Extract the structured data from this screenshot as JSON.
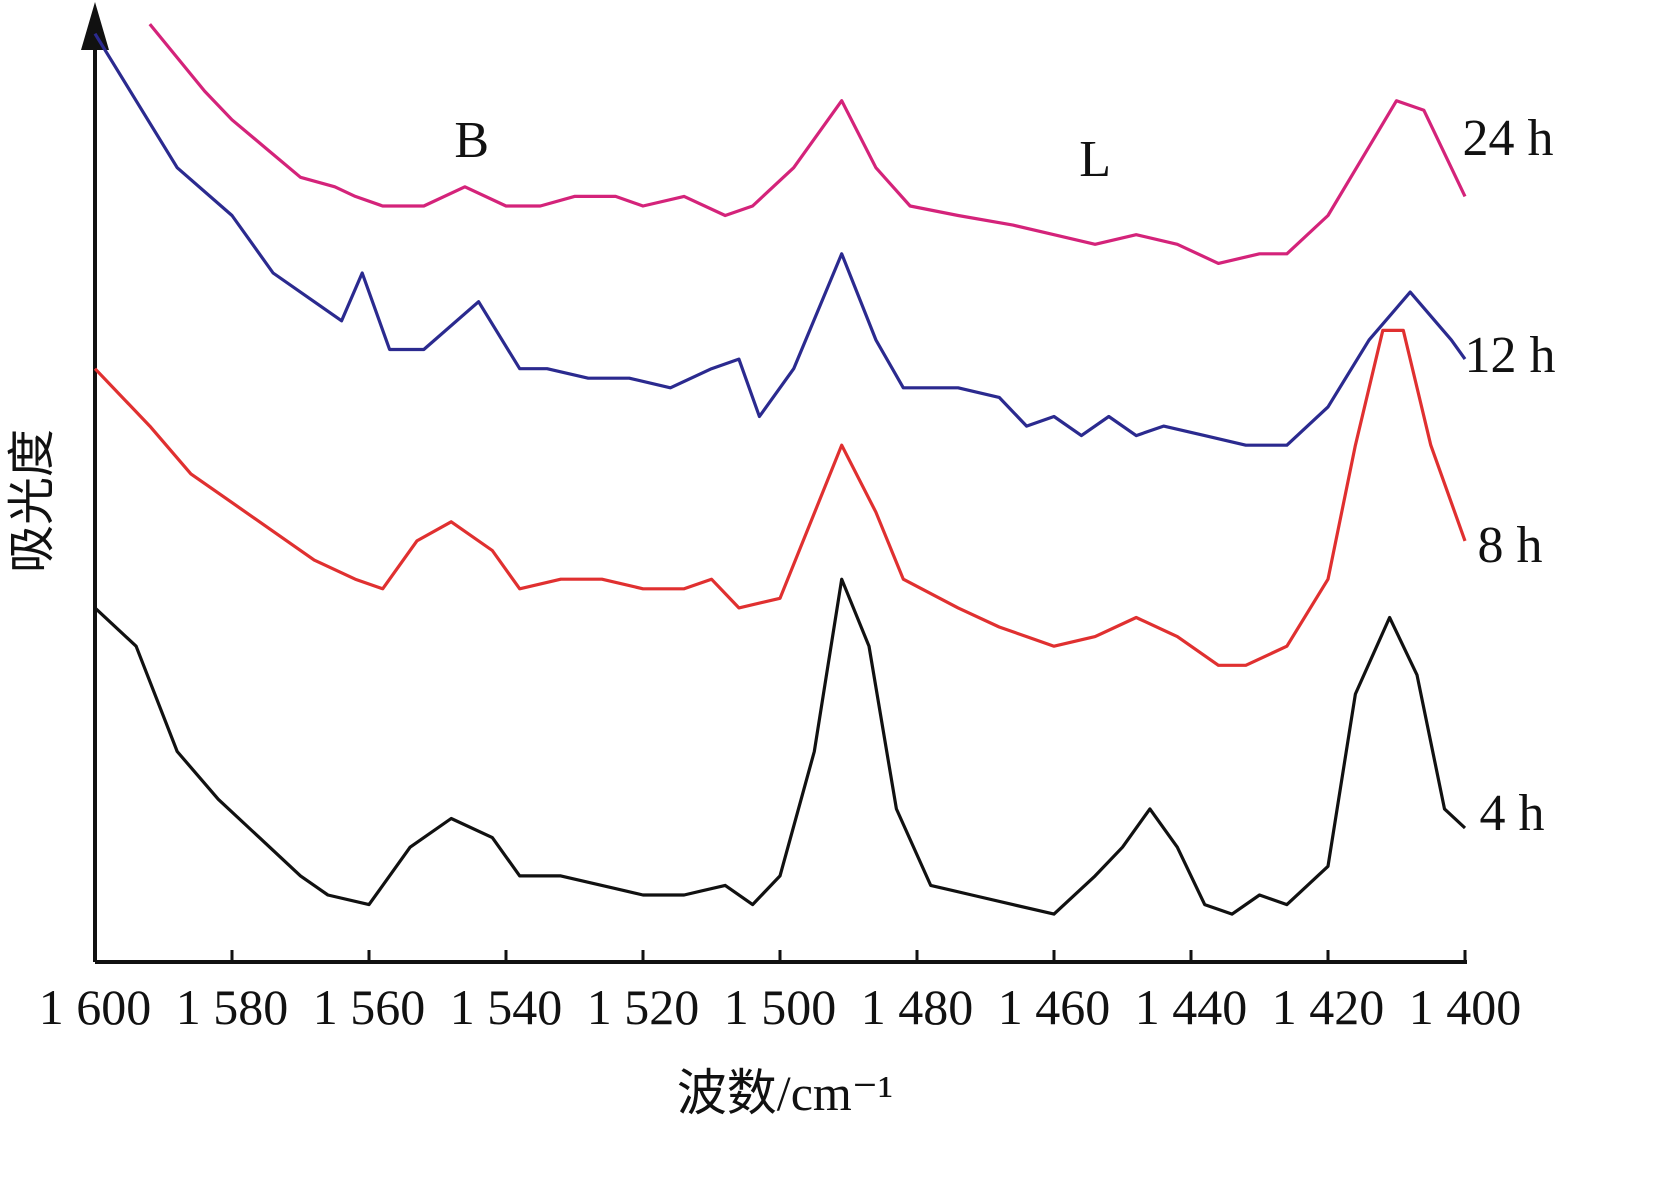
{
  "chart_data": {
    "type": "line",
    "xlabel": "波数/cm⁻¹",
    "ylabel": "吸光度",
    "xlim": [
      1600,
      1400
    ],
    "x_reversed": true,
    "y_ticks_shown": false,
    "grid": false,
    "legend": "labels at right end of each series",
    "x_ticks": [
      {
        "value": 1600,
        "label": "1 600"
      },
      {
        "value": 1580,
        "label": "1 580"
      },
      {
        "value": 1560,
        "label": "1 560"
      },
      {
        "value": 1540,
        "label": "1 540"
      },
      {
        "value": 1520,
        "label": "1 520"
      },
      {
        "value": 1500,
        "label": "1 500"
      },
      {
        "value": 1480,
        "label": "1 480"
      },
      {
        "value": 1460,
        "label": "1 460"
      },
      {
        "value": 1440,
        "label": "1 440"
      },
      {
        "value": 1420,
        "label": "1 420"
      },
      {
        "value": 1400,
        "label": "1 400"
      }
    ],
    "annotations": [
      {
        "text": "B",
        "x": 1545,
        "y": 0.86
      },
      {
        "text": "L",
        "x": 1454,
        "y": 0.84
      }
    ],
    "series": [
      {
        "name": "24 h",
        "color": "#d4237a",
        "points": [
          [
            1592,
            0.98
          ],
          [
            1584,
            0.91
          ],
          [
            1580,
            0.88
          ],
          [
            1575,
            0.85
          ],
          [
            1570,
            0.82
          ],
          [
            1565,
            0.81
          ],
          [
            1562,
            0.8
          ],
          [
            1558,
            0.79
          ],
          [
            1552,
            0.79
          ],
          [
            1546,
            0.81
          ],
          [
            1540,
            0.79
          ],
          [
            1535,
            0.79
          ],
          [
            1530,
            0.8
          ],
          [
            1524,
            0.8
          ],
          [
            1520,
            0.79
          ],
          [
            1514,
            0.8
          ],
          [
            1508,
            0.78
          ],
          [
            1504,
            0.79
          ],
          [
            1498,
            0.83
          ],
          [
            1491,
            0.9
          ],
          [
            1486,
            0.83
          ],
          [
            1481,
            0.79
          ],
          [
            1474,
            0.78
          ],
          [
            1466,
            0.77
          ],
          [
            1460,
            0.76
          ],
          [
            1454,
            0.75
          ],
          [
            1448,
            0.76
          ],
          [
            1442,
            0.75
          ],
          [
            1436,
            0.73
          ],
          [
            1430,
            0.74
          ],
          [
            1426,
            0.74
          ],
          [
            1420,
            0.78
          ],
          [
            1415,
            0.84
          ],
          [
            1410,
            0.9
          ],
          [
            1406,
            0.89
          ],
          [
            1400,
            0.8
          ]
        ]
      },
      {
        "name": "12 h",
        "color": "#2b2a8f",
        "points": [
          [
            1600,
            0.97
          ],
          [
            1594,
            0.9
          ],
          [
            1588,
            0.83
          ],
          [
            1580,
            0.78
          ],
          [
            1574,
            0.72
          ],
          [
            1568,
            0.69
          ],
          [
            1564,
            0.67
          ],
          [
            1561,
            0.72
          ],
          [
            1557,
            0.64
          ],
          [
            1552,
            0.64
          ],
          [
            1544,
            0.69
          ],
          [
            1538,
            0.62
          ],
          [
            1534,
            0.62
          ],
          [
            1528,
            0.61
          ],
          [
            1522,
            0.61
          ],
          [
            1516,
            0.6
          ],
          [
            1510,
            0.62
          ],
          [
            1506,
            0.63
          ],
          [
            1503,
            0.57
          ],
          [
            1498,
            0.62
          ],
          [
            1491,
            0.74
          ],
          [
            1486,
            0.65
          ],
          [
            1482,
            0.6
          ],
          [
            1474,
            0.6
          ],
          [
            1468,
            0.59
          ],
          [
            1464,
            0.56
          ],
          [
            1460,
            0.57
          ],
          [
            1456,
            0.55
          ],
          [
            1452,
            0.57
          ],
          [
            1448,
            0.55
          ],
          [
            1444,
            0.56
          ],
          [
            1438,
            0.55
          ],
          [
            1432,
            0.54
          ],
          [
            1426,
            0.54
          ],
          [
            1420,
            0.58
          ],
          [
            1414,
            0.65
          ],
          [
            1408,
            0.7
          ],
          [
            1402,
            0.65
          ],
          [
            1400,
            0.63
          ]
        ]
      },
      {
        "name": "8 h",
        "color": "#e03030",
        "points": [
          [
            1600,
            0.62
          ],
          [
            1592,
            0.56
          ],
          [
            1586,
            0.51
          ],
          [
            1580,
            0.48
          ],
          [
            1574,
            0.45
          ],
          [
            1568,
            0.42
          ],
          [
            1562,
            0.4
          ],
          [
            1558,
            0.39
          ],
          [
            1553,
            0.44
          ],
          [
            1548,
            0.46
          ],
          [
            1542,
            0.43
          ],
          [
            1538,
            0.39
          ],
          [
            1532,
            0.4
          ],
          [
            1526,
            0.4
          ],
          [
            1520,
            0.39
          ],
          [
            1514,
            0.39
          ],
          [
            1510,
            0.4
          ],
          [
            1506,
            0.37
          ],
          [
            1500,
            0.38
          ],
          [
            1491,
            0.54
          ],
          [
            1486,
            0.47
          ],
          [
            1482,
            0.4
          ],
          [
            1474,
            0.37
          ],
          [
            1468,
            0.35
          ],
          [
            1460,
            0.33
          ],
          [
            1454,
            0.34
          ],
          [
            1448,
            0.36
          ],
          [
            1442,
            0.34
          ],
          [
            1436,
            0.31
          ],
          [
            1432,
            0.31
          ],
          [
            1426,
            0.33
          ],
          [
            1420,
            0.4
          ],
          [
            1416,
            0.54
          ],
          [
            1412,
            0.66
          ],
          [
            1409,
            0.66
          ],
          [
            1405,
            0.54
          ],
          [
            1400,
            0.44
          ]
        ]
      },
      {
        "name": "4 h",
        "color": "#111111",
        "points": [
          [
            1600,
            0.37
          ],
          [
            1594,
            0.33
          ],
          [
            1588,
            0.22
          ],
          [
            1582,
            0.17
          ],
          [
            1576,
            0.13
          ],
          [
            1570,
            0.09
          ],
          [
            1566,
            0.07
          ],
          [
            1560,
            0.06
          ],
          [
            1554,
            0.12
          ],
          [
            1548,
            0.15
          ],
          [
            1542,
            0.13
          ],
          [
            1538,
            0.09
          ],
          [
            1532,
            0.09
          ],
          [
            1526,
            0.08
          ],
          [
            1520,
            0.07
          ],
          [
            1514,
            0.07
          ],
          [
            1508,
            0.08
          ],
          [
            1504,
            0.06
          ],
          [
            1500,
            0.09
          ],
          [
            1495,
            0.22
          ],
          [
            1491,
            0.4
          ],
          [
            1487,
            0.33
          ],
          [
            1483,
            0.16
          ],
          [
            1478,
            0.08
          ],
          [
            1472,
            0.07
          ],
          [
            1466,
            0.06
          ],
          [
            1460,
            0.05
          ],
          [
            1454,
            0.09
          ],
          [
            1450,
            0.12
          ],
          [
            1446,
            0.16
          ],
          [
            1442,
            0.12
          ],
          [
            1438,
            0.06
          ],
          [
            1434,
            0.05
          ],
          [
            1430,
            0.07
          ],
          [
            1426,
            0.06
          ],
          [
            1420,
            0.1
          ],
          [
            1416,
            0.28
          ],
          [
            1411,
            0.36
          ],
          [
            1407,
            0.3
          ],
          [
            1403,
            0.16
          ],
          [
            1400,
            0.14
          ]
        ]
      }
    ]
  }
}
